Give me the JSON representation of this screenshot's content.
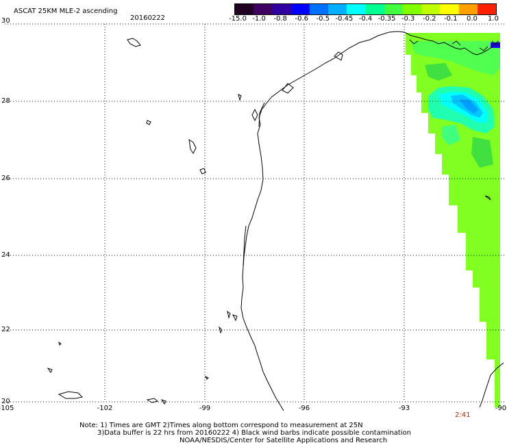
{
  "header": {
    "title": "ASCAT 25KM MLE-2 ascending",
    "date": "20160222"
  },
  "colorbar": {
    "labels": [
      "-15.0",
      "-1.0",
      "-0.8",
      "-0.6",
      "-0.5",
      "-0.45",
      "-0.4",
      "-0.35",
      "-0.3",
      "-0.2",
      "-0.1",
      "0.0",
      "1.0"
    ],
    "colors": [
      "#200020",
      "#400060",
      "#3000a0",
      "#0000ff",
      "#0070ff",
      "#00b0ff",
      "#00ffff",
      "#00ff90",
      "#40ff40",
      "#80ff00",
      "#c0ff00",
      "#ffff00",
      "#ffa000",
      "#ff2000"
    ]
  },
  "axes": {
    "x_ticks": [
      "-105",
      "-102",
      "-99",
      "-96",
      "-93",
      "-90"
    ],
    "y_ticks": [
      "30",
      "28",
      "26",
      "24",
      "22",
      "20"
    ],
    "lon_range": [
      -105,
      -90
    ],
    "lat_range": [
      20,
      30
    ],
    "grid": "dotted"
  },
  "overlay": {
    "time_label": "2:41",
    "time_color": "#cc2200"
  },
  "notes": {
    "line1": "Note: 1) Times are GMT 2)Times along bottom correspond to measurement at 25N",
    "line2": "3)Data buffer is 22 hrs from 20160222 4) Black wind barbs indicate possible contamination",
    "line3": "NOAA/NESDIS/Center for Satellite Applications and Research"
  }
}
